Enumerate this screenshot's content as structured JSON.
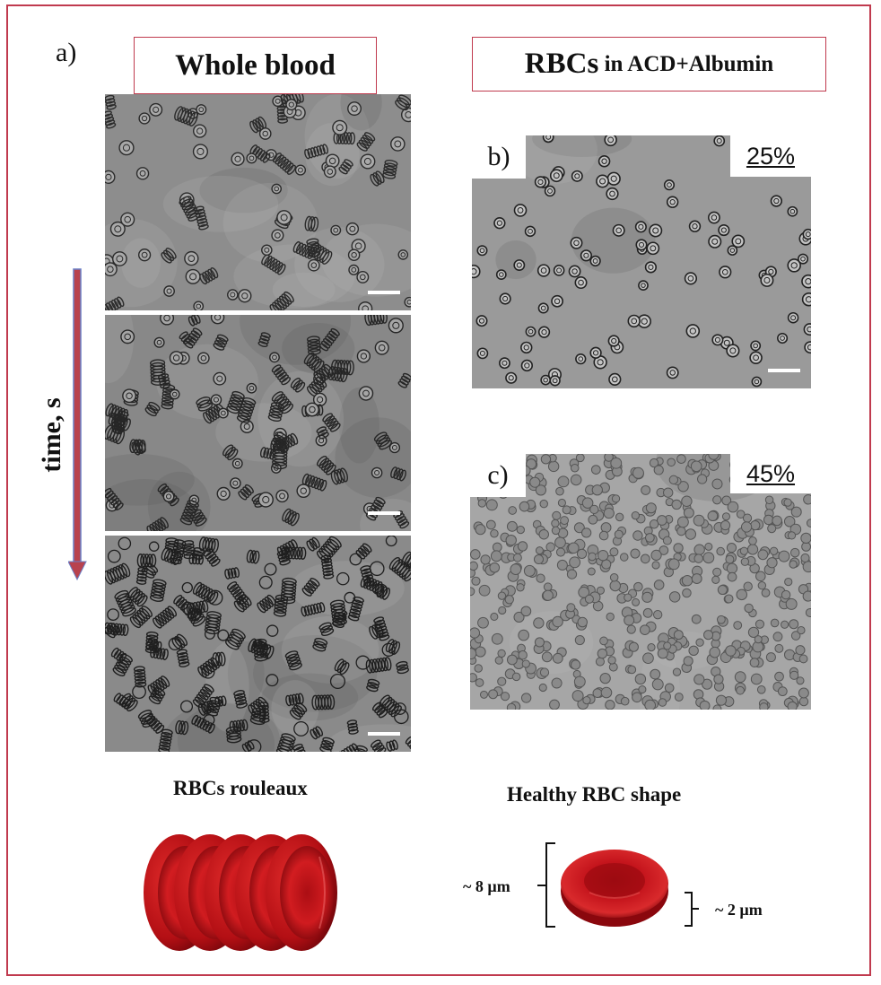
{
  "panel_a": {
    "letter": "a)",
    "title": "Whole blood",
    "axis_label": "time, s",
    "caption": "RBCs rouleaux"
  },
  "panel_right": {
    "title_main": "RBCs",
    "title_rest": " in ACD+Albumin",
    "b_letter": "b)",
    "b_percent": "25%",
    "c_letter": "c)",
    "c_percent": "45%",
    "caption": "Healthy RBC shape",
    "diameter": "~ 8 µm",
    "thickness": "~ 2 µm"
  },
  "colors": {
    "frame": "#c03a4e",
    "arrow": "#b8424e",
    "rbc_red": "#c4141c"
  }
}
